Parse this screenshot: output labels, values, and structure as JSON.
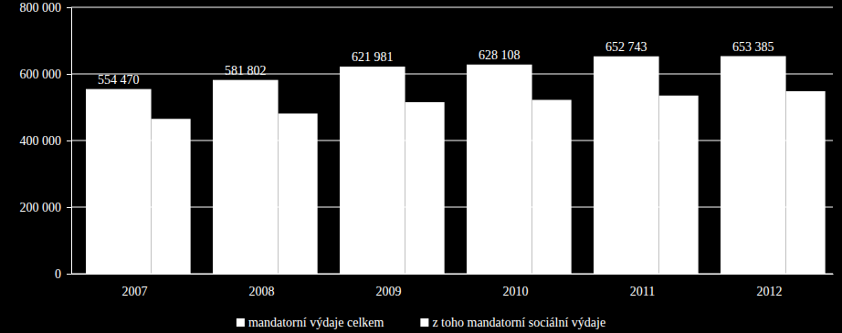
{
  "chart_data": {
    "type": "bar",
    "categories": [
      "2007",
      "2008",
      "2009",
      "2010",
      "2011",
      "2012"
    ],
    "series": [
      {
        "name": "mandatorní výdaje celkem",
        "color": "#ffffff",
        "data_labels": true,
        "values": [
          554470,
          581802,
          621981,
          628108,
          652743,
          653385
        ],
        "value_labels": [
          "554 470",
          "581 802",
          "621 981",
          "628 108",
          "652 743",
          "653 385"
        ]
      },
      {
        "name": "z toho mandatorní sociální výdaje",
        "color": "#ffffff",
        "data_labels": false,
        "values": [
          465000,
          481000,
          515000,
          522000,
          535000,
          548000
        ]
      }
    ],
    "ylim": [
      0,
      800000
    ],
    "yticks": [
      0,
      {
        "value": 200000,
        "label": "200 000"
      },
      {
        "value": 400000,
        "label": "400 000"
      },
      {
        "value": 600000,
        "label": "600 000"
      },
      {
        "value": 800000,
        "label": "800 000"
      }
    ],
    "grid": true,
    "legend": "bottom"
  }
}
